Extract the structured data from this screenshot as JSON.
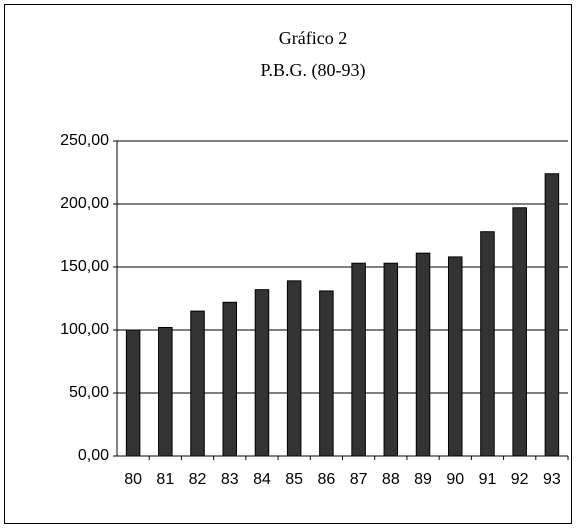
{
  "chart_data": {
    "type": "bar",
    "title": "Gráfico 2",
    "subtitle": "P.B.G. (80-93)",
    "categories": [
      "80",
      "81",
      "82",
      "83",
      "84",
      "85",
      "86",
      "87",
      "88",
      "89",
      "90",
      "91",
      "92",
      "93"
    ],
    "values": [
      100,
      102,
      115,
      122,
      132,
      139,
      131,
      153,
      153,
      161,
      158,
      178,
      197,
      224
    ],
    "color": "#333333",
    "ylim": [
      0,
      250
    ],
    "yticks": [
      {
        "value": 0,
        "label": "0,00"
      },
      {
        "value": 50,
        "label": "50,00"
      },
      {
        "value": 100,
        "label": "100,00"
      },
      {
        "value": 150,
        "label": "150,00"
      },
      {
        "value": 200,
        "label": "200,00"
      },
      {
        "value": 250,
        "label": "250,00"
      }
    ],
    "grid": true
  }
}
